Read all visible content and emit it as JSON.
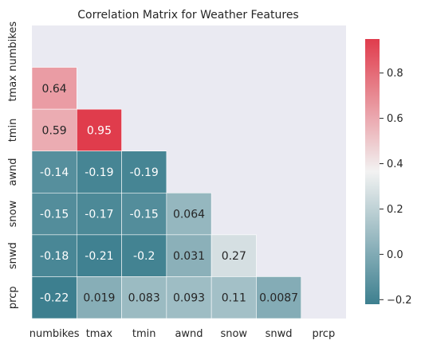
{
  "chart_data": {
    "type": "heatmap",
    "title": "Correlation Matrix for Weather Features",
    "variables": [
      "numbikes",
      "tmax",
      "tmin",
      "awnd",
      "snow",
      "snwd",
      "prcp"
    ],
    "matrix": [
      [
        null,
        null,
        null,
        null,
        null,
        null,
        null
      ],
      [
        0.64,
        null,
        null,
        null,
        null,
        null,
        null
      ],
      [
        0.59,
        0.95,
        null,
        null,
        null,
        null,
        null
      ],
      [
        -0.14,
        -0.19,
        -0.19,
        null,
        null,
        null,
        null
      ],
      [
        -0.15,
        -0.17,
        -0.15,
        0.064,
        null,
        null,
        null
      ],
      [
        -0.18,
        -0.21,
        -0.2,
        0.031,
        0.27,
        null,
        null
      ],
      [
        -0.22,
        0.019,
        0.083,
        0.093,
        0.11,
        0.0087,
        null
      ]
    ],
    "mask": "upper-triangle-and-diagonal",
    "color_scale": {
      "range": [
        -0.22,
        0.95
      ],
      "low_color": "#3d7f8f",
      "mid_color": "#f2f2f2",
      "high_color": "#e03c4c",
      "ticks": [
        -0.2,
        0.0,
        0.2,
        0.4,
        0.6,
        0.8
      ],
      "tick_labels": [
        "−0.2",
        "0.0",
        "0.2",
        "0.4",
        "0.6",
        "0.8"
      ]
    },
    "background_color": "#eaeaf2"
  }
}
